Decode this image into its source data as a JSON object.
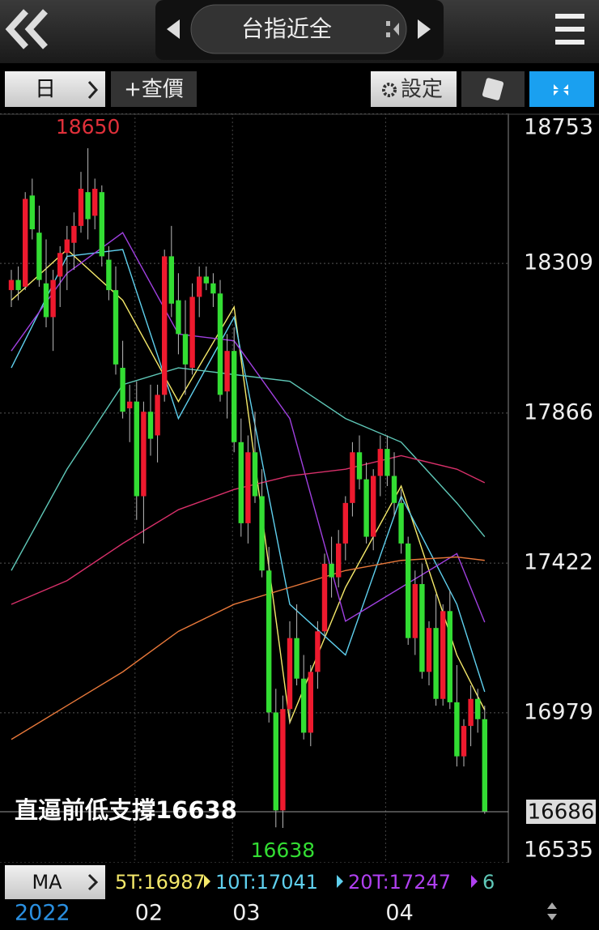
{
  "header": {
    "title": "台指近全"
  },
  "toolbar": {
    "period": "日",
    "quote": "+查價",
    "settings": "設定"
  },
  "chart_data": {
    "type": "candlestick",
    "up_color": "#ee1a2e",
    "down_color": "#33dd33",
    "ylim": [
      16535,
      18753
    ],
    "yticks": [
      18753,
      18309,
      17866,
      17422,
      16979,
      16535
    ],
    "grid": true,
    "categories": [
      "2022",
      null,
      null,
      null,
      null,
      null,
      null,
      null,
      null,
      null,
      null,
      null,
      null,
      null,
      null,
      null,
      null,
      null,
      "02",
      null,
      null,
      null,
      null,
      null,
      null,
      null,
      null,
      null,
      null,
      null,
      null,
      null,
      "03",
      null,
      null,
      null,
      null,
      null,
      null,
      null,
      null,
      null,
      null,
      null,
      null,
      null,
      null,
      null,
      null,
      null,
      null,
      null,
      null,
      null,
      "04",
      null,
      null,
      null,
      null,
      null,
      null,
      null,
      null,
      null,
      null,
      null,
      null,
      null,
      null
    ],
    "open": [
      18230,
      18260,
      18240,
      18510,
      18400,
      18250,
      18150,
      18270,
      18340,
      18370,
      18420,
      18520,
      18450,
      18520,
      18320,
      18230,
      18000,
      17880,
      17900,
      17620,
      17870,
      17800,
      17920,
      18330,
      18200,
      18100,
      18000,
      18210,
      18270,
      18250,
      18220,
      17930,
      18050,
      17780,
      17540,
      17750,
      17620,
      17400,
      16980,
      16690,
      16990,
      17200,
      17080,
      16920,
      17100,
      17220,
      17420,
      17380,
      17480,
      17600,
      17750,
      17670,
      17500,
      17680,
      17760,
      17680,
      17600,
      17480,
      17200,
      17360,
      17100,
      17230,
      17020,
      17280,
      17010,
      16850,
      16940,
      17020,
      16960
    ],
    "high": [
      18290,
      18300,
      18520,
      18560,
      18480,
      18380,
      18290,
      18360,
      18420,
      18460,
      18580,
      18650,
      18560,
      18540,
      18360,
      18300,
      18080,
      17950,
      17960,
      17900,
      17950,
      17950,
      18350,
      18420,
      18280,
      18200,
      18250,
      18300,
      18300,
      18280,
      18260,
      18100,
      18120,
      17850,
      17800,
      17870,
      17700,
      17470,
      17050,
      17030,
      17250,
      17300,
      17150,
      17120,
      17250,
      17450,
      17500,
      17520,
      17620,
      17780,
      17800,
      17720,
      17700,
      17800,
      17800,
      17750,
      17640,
      17500,
      17400,
      17420,
      17250,
      17330,
      17300,
      17340,
      17120,
      16960,
      17060,
      17050,
      17000
    ],
    "low": [
      18180,
      18200,
      18230,
      18380,
      18240,
      18120,
      18050,
      18180,
      18230,
      18290,
      18400,
      18380,
      18410,
      18300,
      18200,
      17980,
      17850,
      17780,
      17550,
      17480,
      17740,
      17720,
      17900,
      18150,
      18040,
      17920,
      17980,
      18150,
      18230,
      18180,
      17900,
      17850,
      17750,
      17500,
      17480,
      17600,
      17380,
      16950,
      16640,
      16638,
      16950,
      17060,
      16900,
      16880,
      17050,
      17200,
      17320,
      17350,
      17430,
      17560,
      17640,
      17480,
      17460,
      17620,
      17650,
      17560,
      17450,
      17180,
      17150,
      17080,
      17060,
      17000,
      17000,
      16990,
      16820,
      16820,
      16880,
      16920,
      16680
    ],
    "close": [
      18260,
      18230,
      18500,
      18410,
      18260,
      18150,
      18260,
      18340,
      18380,
      18420,
      18530,
      18440,
      18530,
      18330,
      18230,
      18010,
      17870,
      17900,
      17620,
      17870,
      17790,
      17920,
      18330,
      18190,
      18100,
      18010,
      18210,
      18270,
      18250,
      18220,
      17920,
      18050,
      17780,
      17540,
      17750,
      17620,
      17400,
      16980,
      16690,
      16990,
      17200,
      17080,
      16920,
      17100,
      17220,
      17420,
      17380,
      17480,
      17600,
      17750,
      17670,
      17500,
      17680,
      17760,
      17680,
      17600,
      17480,
      17200,
      17360,
      17100,
      17230,
      17020,
      17280,
      17010,
      16850,
      16940,
      17020,
      16960,
      16686
    ],
    "ma_lines": [
      {
        "color": "#f5e96a",
        "x": [
          0,
          8,
          16,
          24,
          32,
          40,
          48,
          56,
          64,
          68
        ],
        "values": [
          18200,
          18350,
          18200,
          17900,
          18180,
          16950,
          17350,
          17650,
          17150,
          16987
        ]
      },
      {
        "color": "#5fd0ee",
        "x": [
          0,
          8,
          16,
          24,
          32,
          40,
          48,
          56,
          64,
          68
        ],
        "values": [
          18000,
          18330,
          18350,
          17850,
          18150,
          17300,
          17150,
          17620,
          17300,
          17041
        ]
      },
      {
        "color": "#a040e0",
        "x": [
          0,
          8,
          16,
          24,
          32,
          40,
          48,
          56,
          64,
          68
        ],
        "values": [
          18050,
          18280,
          18400,
          18100,
          18080,
          17850,
          17250,
          17350,
          17450,
          17247
        ]
      },
      {
        "color": "#5fc8b8",
        "x": [
          0,
          8,
          16,
          24,
          32,
          40,
          48,
          56,
          64,
          68
        ],
        "values": [
          17400,
          17700,
          17950,
          18000,
          17980,
          17960,
          17850,
          17780,
          17600,
          17500
        ]
      },
      {
        "color": "#d8306a",
        "x": [
          0,
          8,
          16,
          24,
          32,
          40,
          48,
          56,
          64,
          68
        ],
        "values": [
          17300,
          17370,
          17480,
          17580,
          17640,
          17680,
          17700,
          17740,
          17700,
          17660
        ]
      },
      {
        "color": "#e8783a",
        "x": [
          0,
          8,
          16,
          24,
          32,
          40,
          48,
          56,
          64,
          68
        ],
        "values": [
          16900,
          17000,
          17100,
          17220,
          17300,
          17350,
          17400,
          17430,
          17440,
          17430
        ]
      }
    ],
    "high_label": 18650,
    "low_label": 16638,
    "last_price": 16686,
    "annotation": "直逼前低支撐16638",
    "ma_button": "MA",
    "ma_legend": [
      {
        "text": "5T:16987",
        "color": "#f5e96a"
      },
      {
        "text": "10T:17041",
        "color": "#5fd0ee"
      },
      {
        "text": "20T:17247",
        "color": "#b040f0"
      },
      {
        "text": "6",
        "color": "#5fc8b8"
      }
    ]
  }
}
